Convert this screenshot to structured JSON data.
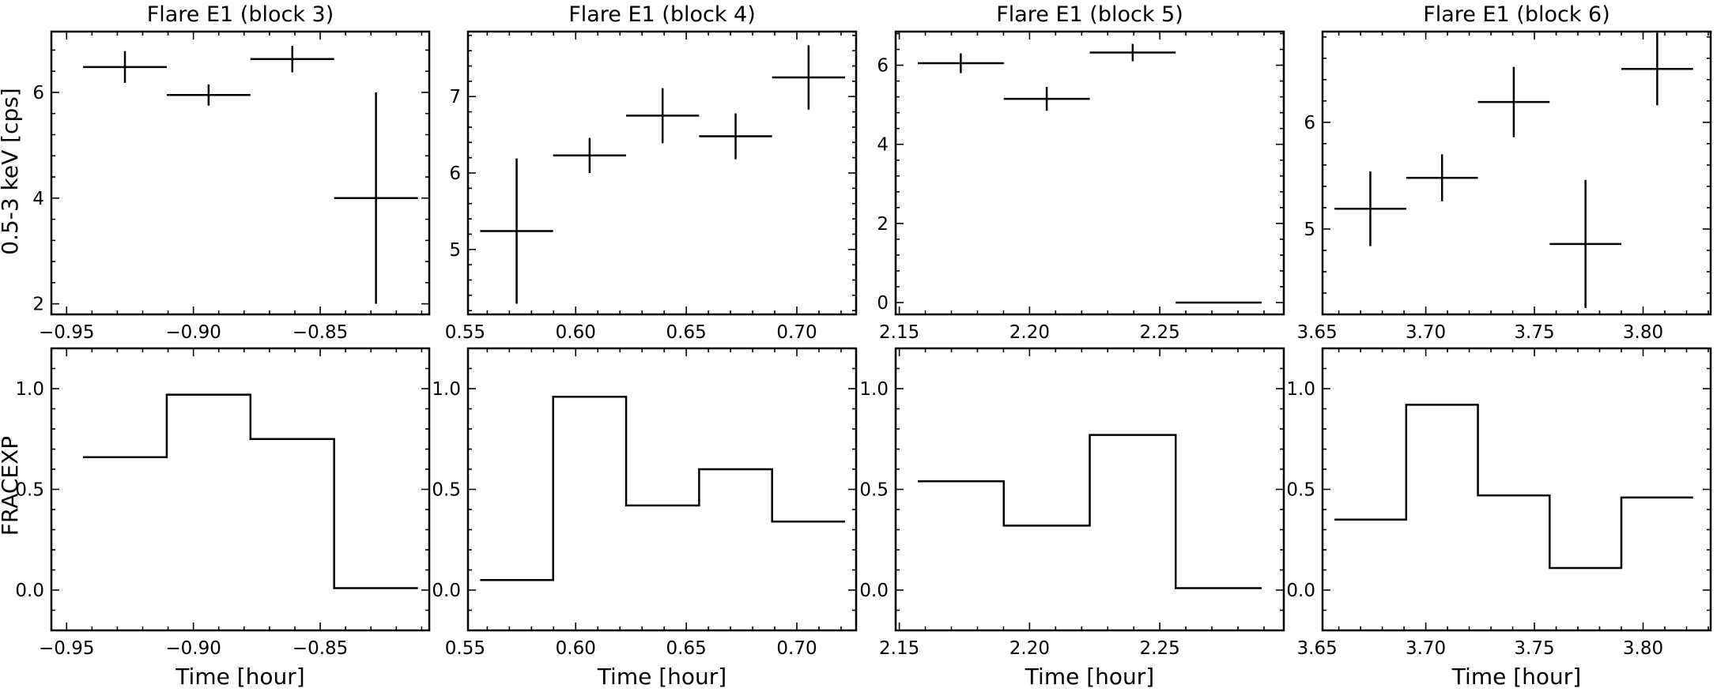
{
  "figure": {
    "y_label_top": "0.5-3 keV [cps]",
    "y_label_bottom": "FRACEXP",
    "x_label": "Time [hour]"
  },
  "chart_data": [
    {
      "type": "errorbar",
      "panel": "top",
      "title": "Flare E1 (block 3)",
      "xlim": [
        -0.956,
        -0.807
      ],
      "ylim": [
        1.8,
        7.15
      ],
      "xticks": [
        -0.95,
        -0.9,
        -0.85
      ],
      "xtick_labels": [
        "−0.95",
        "−0.90",
        "−0.85"
      ],
      "yticks": [
        2,
        4,
        6
      ],
      "ytick_labels": [
        "2",
        "4",
        "6"
      ],
      "points": [
        {
          "x": -0.927,
          "y": 6.48,
          "xerr": 0.0165,
          "yerr": 0.3
        },
        {
          "x": -0.894,
          "y": 5.95,
          "xerr": 0.0165,
          "yerr": 0.2
        },
        {
          "x": -0.861,
          "y": 6.63,
          "xerr": 0.0165,
          "yerr": 0.25
        },
        {
          "x": -0.828,
          "y": 4.0,
          "xerr": 0.0165,
          "yerr": 2.0
        }
      ]
    },
    {
      "type": "errorbar",
      "panel": "top",
      "title": "Flare E1 (block 4)",
      "xlim": [
        0.5513,
        0.7268
      ],
      "ylim": [
        4.15,
        7.85
      ],
      "xticks": [
        0.55,
        0.6,
        0.65,
        0.7
      ],
      "xtick_labels": [
        "0.55",
        "0.60",
        "0.65",
        "0.70"
      ],
      "yticks": [
        5,
        6,
        7
      ],
      "ytick_labels": [
        "5",
        "6",
        "7"
      ],
      "points": [
        {
          "x": 0.5733,
          "y": 5.24,
          "xerr": 0.0165,
          "yerr": 0.95
        },
        {
          "x": 0.6063,
          "y": 6.23,
          "xerr": 0.0165,
          "yerr": 0.23
        },
        {
          "x": 0.6393,
          "y": 6.75,
          "xerr": 0.0165,
          "yerr": 0.36
        },
        {
          "x": 0.6723,
          "y": 6.48,
          "xerr": 0.0165,
          "yerr": 0.3
        },
        {
          "x": 0.7053,
          "y": 7.25,
          "xerr": 0.0165,
          "yerr": 0.42
        }
      ]
    },
    {
      "type": "errorbar",
      "panel": "top",
      "title": "Flare E1 (block 5)",
      "xlim": [
        2.1486,
        2.2976
      ],
      "ylim": [
        -0.3,
        6.85
      ],
      "xticks": [
        2.15,
        2.2,
        2.25
      ],
      "xtick_labels": [
        "2.15",
        "2.20",
        "2.25"
      ],
      "yticks": [
        0,
        2,
        4,
        6
      ],
      "ytick_labels": [
        "0",
        "2",
        "4",
        "6"
      ],
      "points": [
        {
          "x": 2.1736,
          "y": 6.05,
          "xerr": 0.0165,
          "yerr": 0.25
        },
        {
          "x": 2.2066,
          "y": 5.15,
          "xerr": 0.0165,
          "yerr": 0.3
        },
        {
          "x": 2.2396,
          "y": 6.32,
          "xerr": 0.0165,
          "yerr": 0.22
        },
        {
          "x": 2.2726,
          "y": 0.0,
          "xerr": 0.0165,
          "yerr": 0.0
        }
      ]
    },
    {
      "type": "errorbar",
      "panel": "top",
      "title": "Flare E1 (block 6)",
      "xlim": [
        3.6525,
        3.8311
      ],
      "ylim": [
        4.2,
        6.85
      ],
      "xticks": [
        3.65,
        3.7,
        3.75,
        3.8
      ],
      "xtick_labels": [
        "3.65",
        "3.70",
        "3.75",
        "3.80"
      ],
      "yticks": [
        5,
        6
      ],
      "ytick_labels": [
        "5",
        "6"
      ],
      "points": [
        {
          "x": 3.6745,
          "y": 5.19,
          "xerr": 0.0165,
          "yerr": 0.35
        },
        {
          "x": 3.7075,
          "y": 5.48,
          "xerr": 0.0165,
          "yerr": 0.22
        },
        {
          "x": 3.7405,
          "y": 6.19,
          "xerr": 0.0165,
          "yerr": 0.33
        },
        {
          "x": 3.7735,
          "y": 4.86,
          "xerr": 0.0165,
          "yerr": 0.6
        },
        {
          "x": 3.8065,
          "y": 6.5,
          "xerr": 0.0165,
          "yerr": 0.34
        }
      ]
    },
    {
      "type": "step",
      "panel": "bottom",
      "xlim": [
        -0.956,
        -0.807
      ],
      "ylim": [
        -0.2,
        1.2
      ],
      "xticks": [
        -0.95,
        -0.9,
        -0.85
      ],
      "xtick_labels": [
        "−0.95",
        "−0.90",
        "−0.85"
      ],
      "yticks": [
        0.0,
        0.5,
        1.0
      ],
      "ytick_labels": [
        "0.0",
        "0.5",
        "1.0"
      ],
      "edges": [
        -0.9435,
        -0.9105,
        -0.8775,
        -0.8445,
        -0.8115
      ],
      "values": [
        0.66,
        0.97,
        0.75,
        0.01
      ]
    },
    {
      "type": "step",
      "panel": "bottom",
      "xlim": [
        0.5513,
        0.7268
      ],
      "ylim": [
        -0.2,
        1.2
      ],
      "xticks": [
        0.55,
        0.6,
        0.65,
        0.7
      ],
      "xtick_labels": [
        "0.55",
        "0.60",
        "0.65",
        "0.70"
      ],
      "yticks": [
        0.0,
        0.5,
        1.0
      ],
      "ytick_labels": [
        "0.0",
        "0.5",
        "1.0"
      ],
      "edges": [
        0.5568,
        0.5898,
        0.6228,
        0.6558,
        0.6888,
        0.7218
      ],
      "values": [
        0.05,
        0.96,
        0.42,
        0.6,
        0.34
      ]
    },
    {
      "type": "step",
      "panel": "bottom",
      "xlim": [
        2.1486,
        2.2976
      ],
      "ylim": [
        -0.2,
        1.2
      ],
      "xticks": [
        2.15,
        2.2,
        2.25
      ],
      "xtick_labels": [
        "2.15",
        "2.20",
        "2.25"
      ],
      "yticks": [
        0.0,
        0.5,
        1.0
      ],
      "ytick_labels": [
        "0.0",
        "0.5",
        "1.0"
      ],
      "edges": [
        2.1571,
        2.1901,
        2.2231,
        2.2561,
        2.2891
      ],
      "values": [
        0.54,
        0.32,
        0.77,
        0.01
      ]
    },
    {
      "type": "step",
      "panel": "bottom",
      "xlim": [
        3.6525,
        3.8311
      ],
      "ylim": [
        -0.2,
        1.2
      ],
      "xticks": [
        3.65,
        3.7,
        3.75,
        3.8
      ],
      "xtick_labels": [
        "3.65",
        "3.70",
        "3.75",
        "3.80"
      ],
      "yticks": [
        0.0,
        0.5,
        1.0
      ],
      "ytick_labels": [
        "0.0",
        "0.5",
        "1.0"
      ],
      "edges": [
        3.658,
        3.691,
        3.724,
        3.757,
        3.79,
        3.823
      ],
      "values": [
        0.35,
        0.92,
        0.47,
        0.11,
        0.46
      ]
    }
  ]
}
